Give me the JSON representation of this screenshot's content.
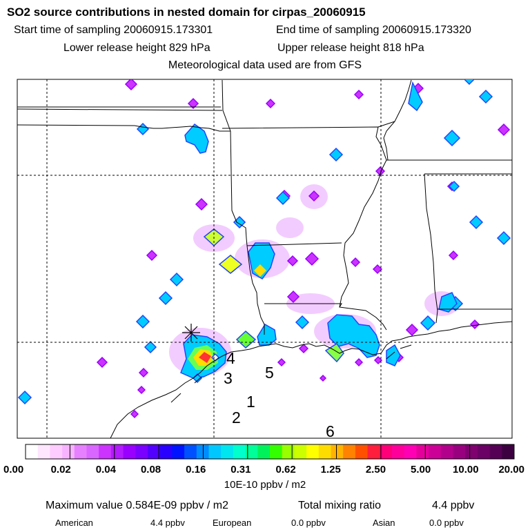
{
  "header": {
    "title": "SO2 source contributions in nested domain for cirpas_20060915",
    "start_time": "Start time of sampling 20060915.173301",
    "end_time": "End time of sampling 20060915.173320",
    "lower_height": "Lower release height  829 hPa",
    "upper_height": "Upper release height  818 hPa",
    "met_data": "Meteorological data used are from GFS"
  },
  "chart_data": {
    "type": "heatmap",
    "title": "SO2 source contributions in nested domain for cirpas_20060915",
    "colorbar": {
      "ticks": [
        "0.00",
        "0.02",
        "0.04",
        "0.08",
        "0.16",
        "0.31",
        "0.62",
        "1.25",
        "2.50",
        "5.00",
        "10.00",
        "20.00"
      ],
      "label": "10E-10 ppbv / m2",
      "colors": [
        "#ffffff",
        "#ffe6ff",
        "#ffccff",
        "#f7b3ff",
        "#e680ff",
        "#d966ff",
        "#cc33ff",
        "#b31aff",
        "#9900ff",
        "#7a00ff",
        "#5200ff",
        "#2900ff",
        "#0014ff",
        "#0050ff",
        "#008cff",
        "#00c8ff",
        "#00e6f0",
        "#00ffcc",
        "#00ff99",
        "#00f25a",
        "#33ff00",
        "#99ff00",
        "#ccff00",
        "#ffff00",
        "#ffdc00",
        "#ffb400",
        "#ff8200",
        "#ff5000",
        "#ff1e3c",
        "#ff0078",
        "#ff009b",
        "#ff00b4",
        "#e6009b",
        "#cc0096",
        "#b3008c",
        "#990080",
        "#800070",
        "#6b0066",
        "#550055",
        "#3c0040"
      ]
    },
    "receptor_labels": [
      "1",
      "2",
      "3",
      "4",
      "5",
      "6"
    ],
    "source_marker": "x",
    "grid_on": true
  },
  "stats": {
    "max_label": "Maximum value  0.584E-09 ppbv / m2",
    "total_label": "Total mixing ratio",
    "total_value": "4.4 ppbv",
    "american_label": "American",
    "american_value": "4.4 ppbv",
    "european_label": "European",
    "european_value": "0.0 ppbv",
    "asian_label": "Asian",
    "asian_value": "0.0 ppbv"
  }
}
